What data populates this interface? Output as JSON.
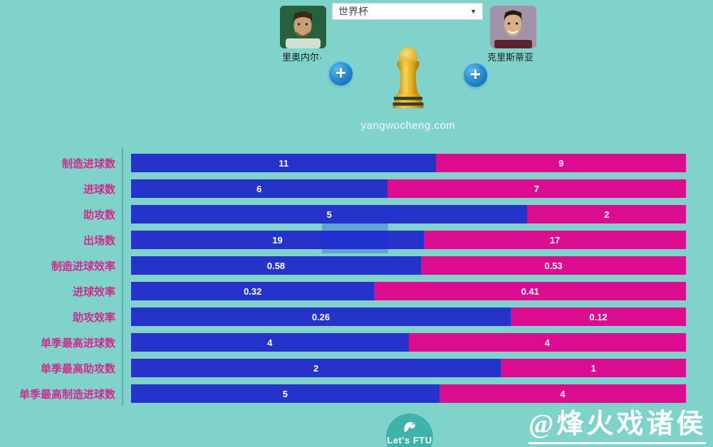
{
  "header": {
    "player_left": {
      "name": "里奥内尔·",
      "photo": "messi-portrait"
    },
    "player_right": {
      "name": "克里斯蒂亚",
      "photo": "ronaldo-portrait"
    },
    "competition_select": {
      "value": "世界杯",
      "arrow_glyph": "▼"
    },
    "add_button_glyph": "+",
    "trophy_icon": "world-cup-trophy",
    "site_watermark": "yangwocheng.com"
  },
  "chart_data": {
    "type": "bar",
    "subtype": "horizontal-stacked-two-player-comparison",
    "categories": [
      "制造进球数",
      "进球数",
      "助攻数",
      "出场数",
      "制造进球效率",
      "进球效率",
      "助攻效率",
      "单季最高进球数",
      "单季最高助攻数",
      "单季最高制造进球数"
    ],
    "series": [
      {
        "name": "里奥内尔·",
        "side": "left",
        "color": "#2533cb",
        "values": [
          "11",
          "6",
          "5",
          "19",
          "0.58",
          "0.32",
          "0.26",
          "4",
          "2",
          "5"
        ]
      },
      {
        "name": "克里斯蒂亚",
        "side": "right",
        "color": "#dc0c90",
        "values": [
          "9",
          "7",
          "2",
          "17",
          "0.53",
          "0.41",
          "0.12",
          "4",
          "1",
          "4"
        ]
      }
    ],
    "bar_segment_width_rule": "left_value / (left_value + right_value)",
    "value_label_color": "#ffffff",
    "category_label_color": "#cf2b8f",
    "legend": "none",
    "grid": false
  },
  "footer": {
    "logo_text": "Let's FTU",
    "logo_icon": "flamingo-icon",
    "artist_watermark": "@烽火戏诸侯"
  },
  "colors": {
    "background": "#7fd3ca",
    "bar_left": "#2533cb",
    "bar_right": "#dc0c90",
    "category_label": "#cf2b8f",
    "axis_line": "#54b1a8",
    "logo_circle": "#3db3aa"
  }
}
